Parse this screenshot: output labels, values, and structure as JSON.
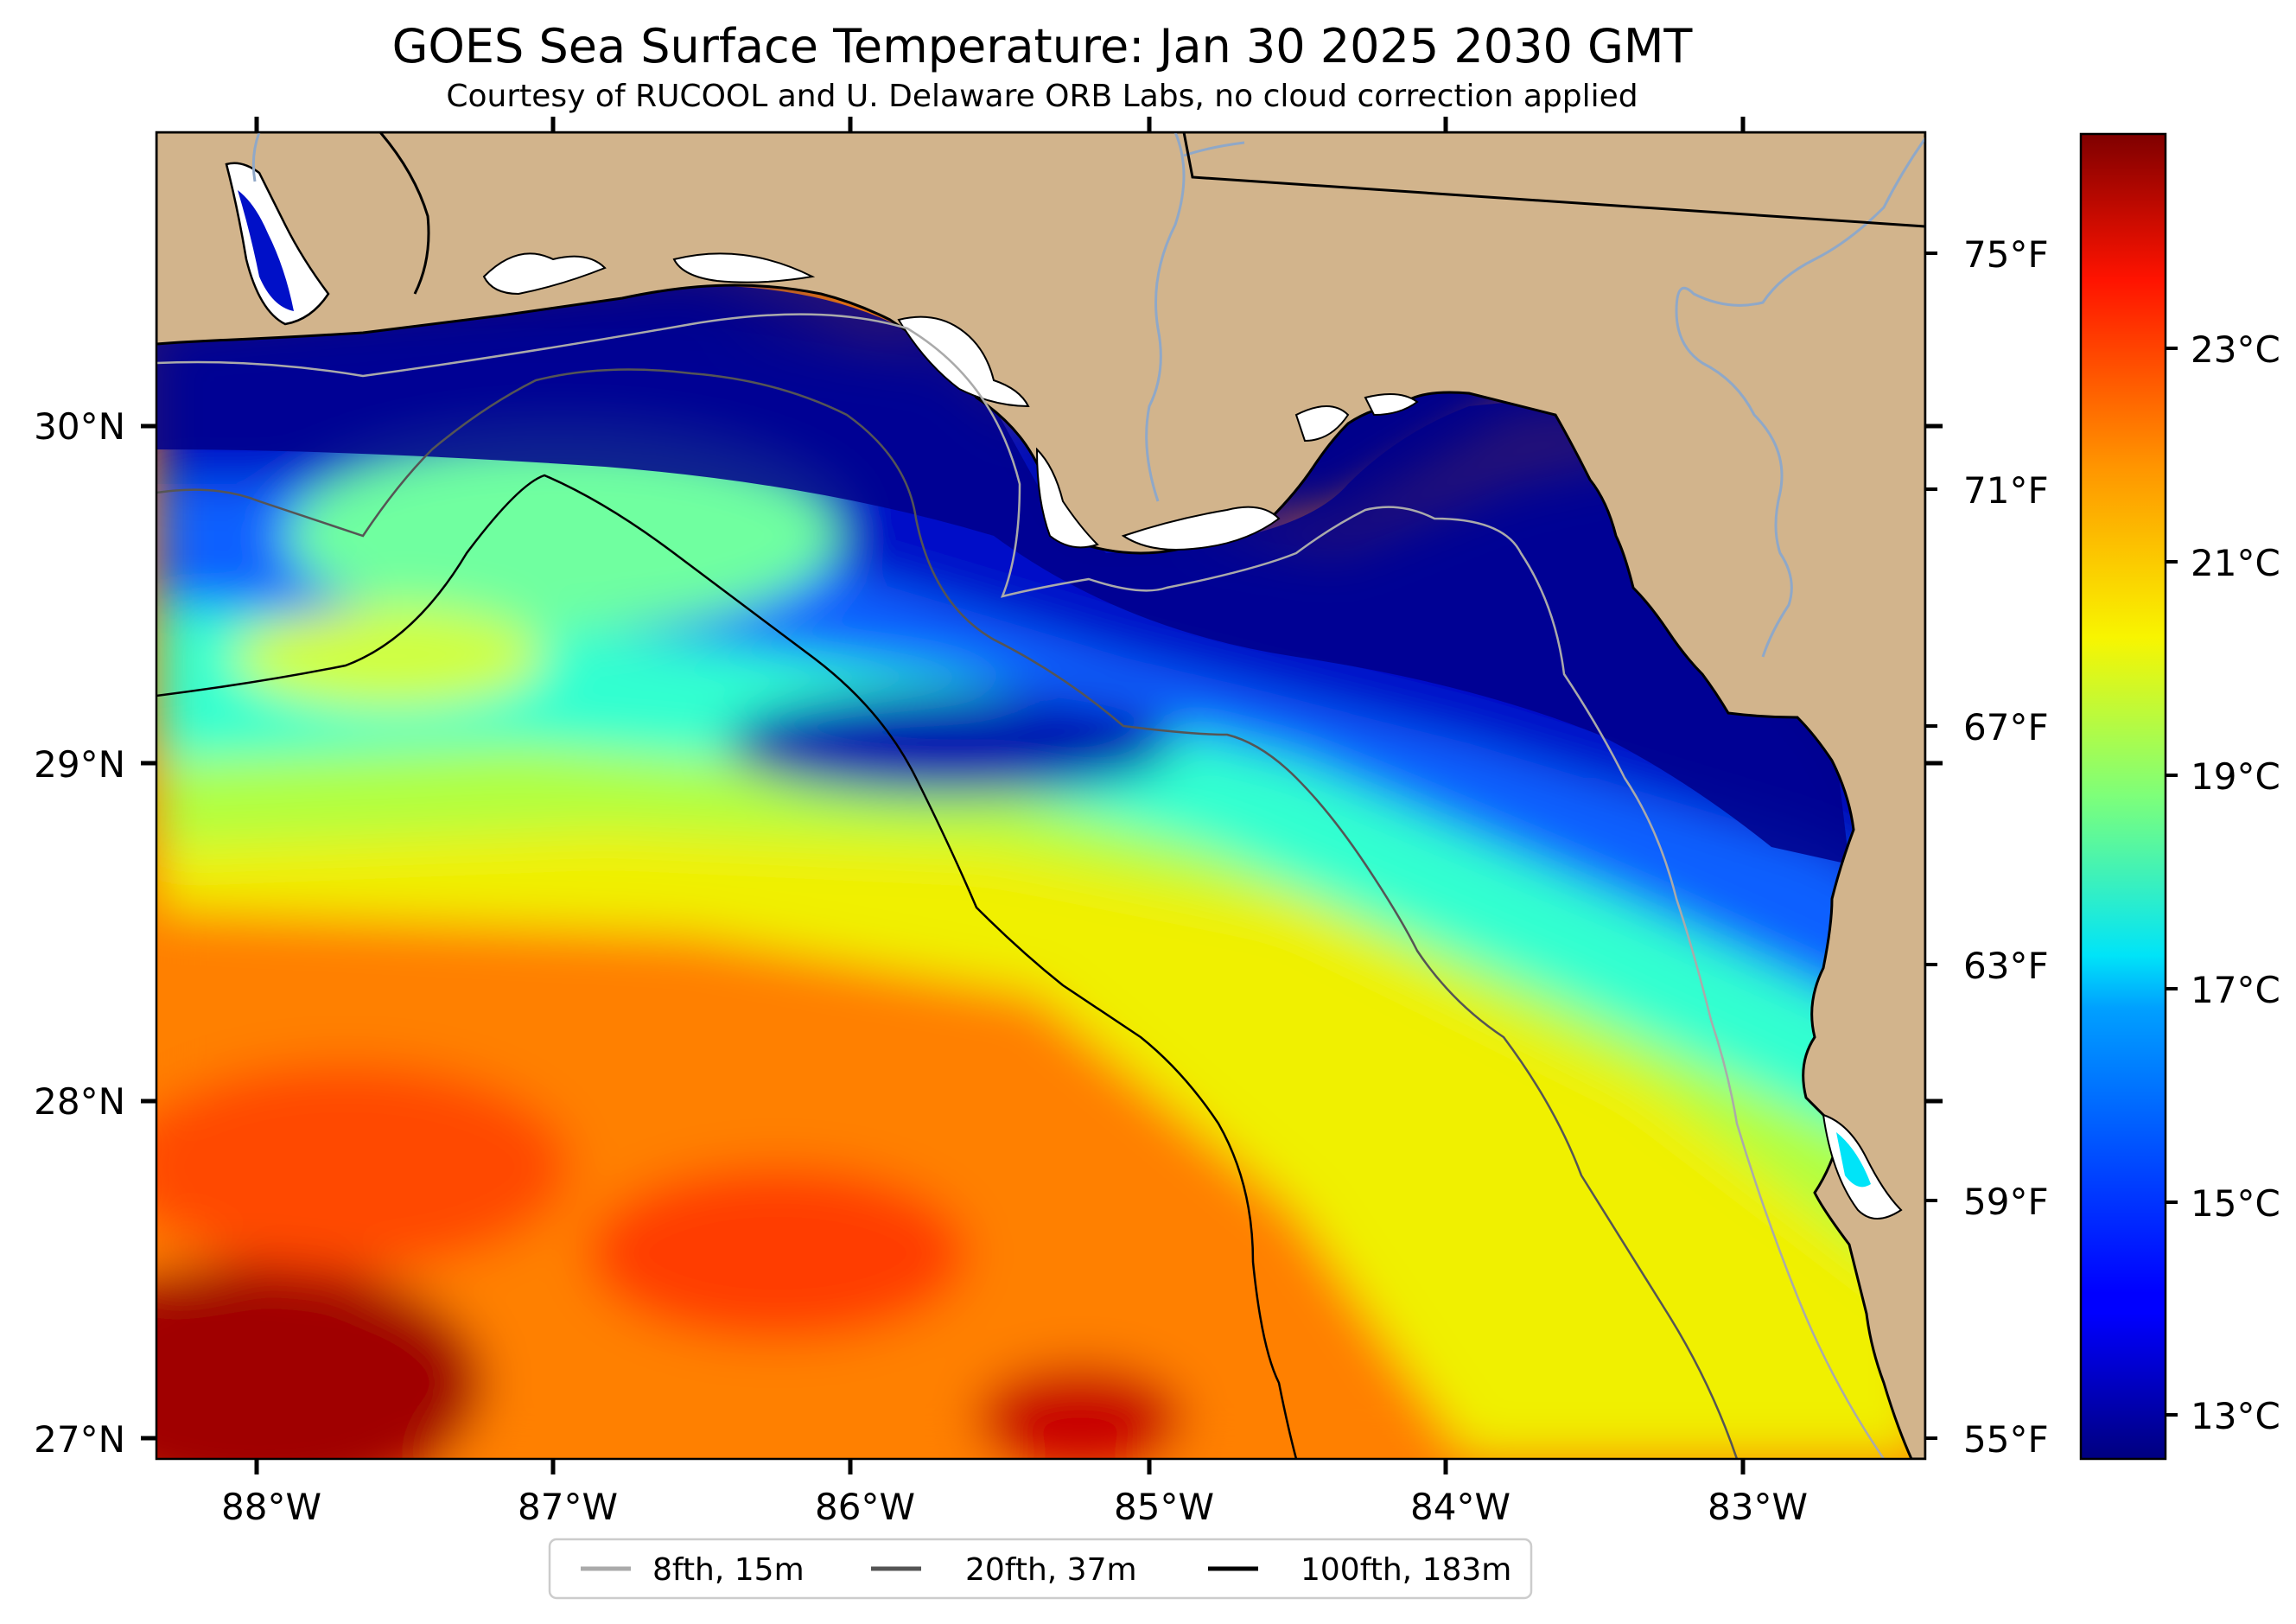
{
  "title": "GOES Sea Surface Temperature: Jan 30 2025 2030 GMT",
  "subtitle": "Courtesy of RUCOOL and U. Delaware ORB Labs, no cloud correction applied",
  "lon_ticks": [
    "88°W",
    "87°W",
    "86°W",
    "85°W",
    "84°W",
    "83°W"
  ],
  "lat_ticks": [
    "30°N",
    "29°N",
    "28°N",
    "27°N"
  ],
  "fahrenheit_ticks": [
    "75°F",
    "71°F",
    "67°F",
    "63°F",
    "59°F",
    "55°F"
  ],
  "colorbar": {
    "ticks": [
      "23°C",
      "21°C",
      "19°C",
      "17°C",
      "15°C",
      "13°C"
    ],
    "range_c": [
      12.7,
      25.1
    ],
    "colormap": "jet"
  },
  "legend": [
    {
      "label": "8fth, 15m",
      "color": "#aaaaaa"
    },
    {
      "label": "20fth, 37m",
      "color": "#555555"
    },
    {
      "label": "100fth, 183m",
      "color": "#000000"
    }
  ],
  "colors": {
    "land": "#d2b48c",
    "cold_water": "#00008b",
    "warm_water": "#ff7f00",
    "river": "#8fa8c8"
  }
}
